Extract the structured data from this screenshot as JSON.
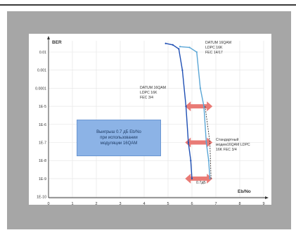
{
  "chart_data": {
    "type": "line",
    "title": "",
    "xlabel": "Eb/No",
    "ylabel": "BER",
    "xlim": [
      0,
      9
    ],
    "x_ticks": [
      "0",
      "1",
      "2",
      "3",
      "4",
      "5",
      "6",
      "7",
      "8",
      "9"
    ],
    "y_ticks": [
      "0.01",
      "0.001",
      "0.0001",
      "1E-5",
      "1E-6",
      "1E-7",
      "1E-8",
      "1E-9",
      "1E-10"
    ],
    "grid": true,
    "series": [
      {
        "label": "DATUM 16QAM LDPC 16K FEC 3/4",
        "color": "#1f4fb4",
        "x": [
          4.9,
          5.2,
          5.45,
          5.6,
          5.75,
          5.85,
          5.95,
          6.0
        ],
        "y": [
          0.03,
          0.025,
          0.015,
          0.001,
          1e-05,
          1e-07,
          1e-08,
          1e-09
        ]
      },
      {
        "label": "DATUM 16QAM LDPC 16K FEC 14/17",
        "color": "#5aa6d6",
        "x": [
          5.5,
          5.9,
          6.2,
          6.35,
          6.5,
          6.6,
          6.7,
          6.75
        ],
        "y": [
          0.02,
          0.018,
          0.01,
          0.0001,
          1e-05,
          1e-07,
          1e-08,
          1e-09
        ]
      },
      {
        "label": "Стандартный модем16QAM LDPC 16K FEC 3/4",
        "color": "#333333",
        "x": [
          6.55,
          6.65,
          6.75,
          6.8
        ],
        "y": [
          1e-05,
          1e-06,
          1e-07,
          1e-09
        ]
      }
    ],
    "annotations": {
      "datum_14_17": [
        "DATUM 16QAM",
        "LDPC 16K",
        "FEC 14/17"
      ],
      "datum_3_4": [
        "DATUM 16QAM",
        "LDPC 16K",
        "FEC 3/4"
      ],
      "standard": [
        "Стандартный",
        "модем16QAM LDPC",
        "16K FEC 3/4"
      ],
      "gap_label": "0.7дБ",
      "callout": "Выигрыш 0.7 дБ Eb/No\nпри использовании\nмодуляции 16QAM"
    },
    "arrow_color": "#e8736e"
  }
}
